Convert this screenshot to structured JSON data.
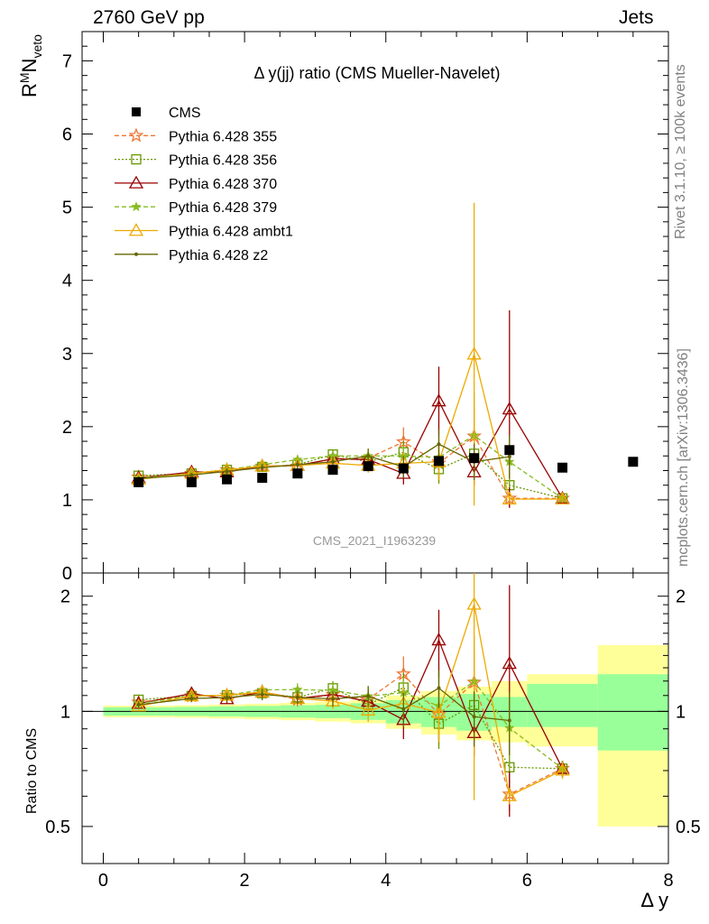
{
  "header": {
    "left": "2760 GeV pp",
    "right": "Jets"
  },
  "side_labels": {
    "rivet": "Rivet 3.1.10, ≥ 100k events",
    "mcplots": "mcplots.cern.ch [arXiv:1306.3436]"
  },
  "chart_data": {
    "type": "scatter",
    "title": "Δ y(jj) ratio (CMS Mueller-Navelet)",
    "watermark": "CMS_2021_I1963239",
    "xlabel": "Δ y",
    "ylabel_main": "R^M N_veto",
    "ylabel_ratio": "Ratio to CMS",
    "xlim": [
      -0.3,
      8.0
    ],
    "ylim_main": [
      0,
      7.4
    ],
    "ylim_ratio": [
      0.4,
      2.3
    ],
    "x_ticks": [
      "0",
      "2",
      "4",
      "6",
      "8"
    ],
    "y_ticks_main": [
      "0",
      "1",
      "2",
      "3",
      "4",
      "5",
      "6",
      "7"
    ],
    "y_ticks_ratio": [
      "0.5",
      "1",
      "2"
    ],
    "legend_position": "top-left",
    "reference_band": {
      "x_edges": [
        0.0,
        0.75,
        1.0,
        1.5,
        2.0,
        2.5,
        3.0,
        3.5,
        4.0,
        4.5,
        5.0,
        5.5,
        6.0,
        7.0,
        8.0
      ],
      "inner": [
        [
          0.975,
          1.025
        ],
        [
          0.975,
          1.025
        ],
        [
          0.973,
          1.027
        ],
        [
          0.97,
          1.03
        ],
        [
          0.967,
          1.033
        ],
        [
          0.963,
          1.037
        ],
        [
          0.96,
          1.04
        ],
        [
          0.95,
          1.05
        ],
        [
          0.93,
          1.07
        ],
        [
          0.91,
          1.09
        ],
        [
          0.89,
          1.11
        ],
        [
          0.91,
          1.09
        ],
        [
          0.91,
          1.18
        ],
        [
          0.79,
          1.25
        ]
      ],
      "outer": [
        [
          0.965,
          1.035
        ],
        [
          0.965,
          1.035
        ],
        [
          0.962,
          1.038
        ],
        [
          0.958,
          1.042
        ],
        [
          0.953,
          1.047
        ],
        [
          0.948,
          1.052
        ],
        [
          0.94,
          1.06
        ],
        [
          0.93,
          1.07
        ],
        [
          0.9,
          1.1
        ],
        [
          0.87,
          1.13
        ],
        [
          0.84,
          1.16
        ],
        [
          0.83,
          1.2
        ],
        [
          0.81,
          1.25
        ],
        [
          0.5,
          1.49
        ]
      ]
    },
    "series": [
      {
        "name": "CMS",
        "color": "#000000",
        "marker": "square-filled",
        "line": "none",
        "x": [
          0.5,
          1.25,
          1.75,
          2.25,
          2.75,
          3.25,
          3.75,
          4.25,
          4.75,
          5.25,
          5.75,
          6.5,
          7.5
        ],
        "y": [
          1.24,
          1.24,
          1.28,
          1.3,
          1.36,
          1.41,
          1.46,
          1.43,
          1.53,
          1.57,
          1.68,
          1.44,
          1.52
        ]
      },
      {
        "name": "Pythia 6.428 355",
        "color": "#ee7733",
        "marker": "star-open",
        "line": "dashed",
        "x": [
          0.5,
          1.25,
          1.75,
          2.25,
          2.75,
          3.25,
          3.75,
          4.25,
          4.75,
          5.25,
          5.75,
          6.5
        ],
        "y": [
          1.31,
          1.36,
          1.41,
          1.46,
          1.46,
          1.56,
          1.57,
          1.79,
          1.5,
          1.87,
          1.02,
          1.02
        ],
        "err": [
          0.03,
          0.03,
          0.04,
          0.05,
          0.06,
          0.07,
          0.1,
          0.2,
          0.25,
          0.4,
          0.1,
          0.05
        ]
      },
      {
        "name": "Pythia 6.428 356",
        "color": "#669900",
        "marker": "square-open",
        "line": "dotted",
        "x": [
          0.5,
          1.25,
          1.75,
          2.25,
          2.75,
          3.25,
          3.75,
          4.25,
          4.75,
          5.25,
          5.75,
          6.5
        ],
        "y": [
          1.33,
          1.36,
          1.41,
          1.45,
          1.48,
          1.62,
          1.52,
          1.65,
          1.42,
          1.63,
          1.2,
          1.02
        ],
        "err": [
          0.03,
          0.03,
          0.04,
          0.05,
          0.06,
          0.07,
          0.1,
          0.15,
          0.2,
          0.3,
          0.15,
          0.05
        ]
      },
      {
        "name": "Pythia 6.428 370",
        "color": "#990000",
        "marker": "triangle-open",
        "line": "solid",
        "x": [
          0.5,
          1.25,
          1.75,
          2.25,
          2.75,
          3.25,
          3.75,
          4.25,
          4.75,
          5.25,
          5.75,
          6.5
        ],
        "y": [
          1.3,
          1.38,
          1.38,
          1.46,
          1.47,
          1.56,
          1.55,
          1.36,
          2.35,
          1.38,
          2.24,
          1.02
        ],
        "err": [
          0.03,
          0.04,
          0.04,
          0.05,
          0.06,
          0.07,
          0.1,
          0.15,
          0.47,
          0.18,
          1.35,
          0.05
        ]
      },
      {
        "name": "Pythia 6.428 379",
        "color": "#88bb22",
        "marker": "star-filled",
        "line": "dashed",
        "x": [
          0.5,
          1.25,
          1.75,
          2.25,
          2.75,
          3.25,
          3.75,
          4.25,
          4.75,
          5.25,
          5.75,
          6.5
        ],
        "y": [
          1.3,
          1.36,
          1.41,
          1.48,
          1.55,
          1.6,
          1.6,
          1.6,
          1.58,
          1.88,
          1.52,
          1.02
        ],
        "err": [
          0.03,
          0.03,
          0.04,
          0.05,
          0.06,
          0.07,
          0.1,
          0.15,
          0.3,
          0.6,
          0.35,
          0.05
        ]
      },
      {
        "name": "Pythia 6.428 ambt1",
        "color": "#eeaa00",
        "marker": "triangle-open",
        "line": "solid",
        "x": [
          0.5,
          1.25,
          1.75,
          2.25,
          2.75,
          3.25,
          3.75,
          4.25,
          4.75,
          5.25,
          5.75,
          6.5
        ],
        "y": [
          1.28,
          1.36,
          1.41,
          1.46,
          1.47,
          1.5,
          1.47,
          1.5,
          1.52,
          2.99,
          1.01,
          1.01
        ],
        "err": [
          0.03,
          0.03,
          0.04,
          0.05,
          0.06,
          0.07,
          0.1,
          0.15,
          0.25,
          2.07,
          0.05,
          0.05
        ]
      },
      {
        "name": "Pythia 6.428 z2",
        "color": "#666600",
        "marker": "dot",
        "line": "solid",
        "x": [
          0.5,
          1.25,
          1.75,
          2.25,
          2.75,
          3.25,
          3.75,
          4.25,
          4.75,
          5.25,
          5.75
        ],
        "y": [
          1.29,
          1.34,
          1.39,
          1.44,
          1.48,
          1.52,
          1.6,
          1.45,
          1.76,
          1.52,
          1.59
        ],
        "err": [
          0.03,
          0.03,
          0.04,
          0.05,
          0.06,
          0.07,
          0.1,
          0.15,
          0.2,
          0.25,
          0.3
        ]
      }
    ]
  }
}
